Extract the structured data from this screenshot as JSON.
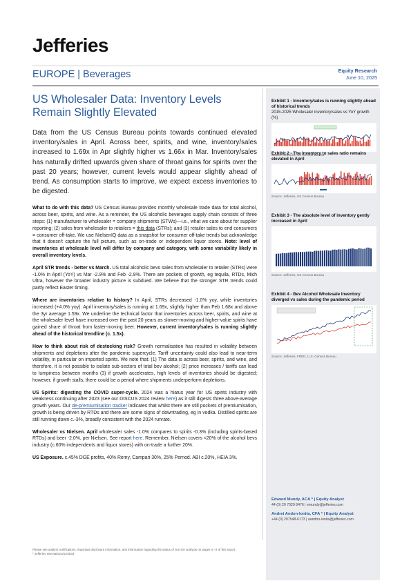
{
  "brand": {
    "logo": "Jefferies"
  },
  "header": {
    "sector": "EUROPE | Beverages",
    "report_type": "Equity Research",
    "date": "June 10, 2025"
  },
  "title": "US Wholesaler Data: Inventory Levels Remain Slightly Elevated",
  "lede": "Data from the US Census Bureau points towards continued elevated inventory/sales in April. Across beer, spirits, and wine, inventory/sales increased to 1.69x in Apr slightly higher vs 1.66x in Mar. Inventory/sales has naturally drifted upwards given share of throat gains for spirits over the past 20 years; however, current levels would appear slightly ahead of trend. As consumption starts to improve, we expect excess inventories to be digested.",
  "sections": [
    {
      "lead": "What to do with this data?",
      "text": "US Census Bureau provides monthly wholesale trade data for total alcohol, across beer, spirits, and wine. As a reminder, the US alcoholic beverages supply chain consists of three steps: (1) manufacturer to wholesaler = company shipments (STWs)—i.e., what we care about for supplier reporting; (2) sales from wholesaler to retailers = ",
      "link": "this data",
      "text2": " (STRs); and (3) retailer sales to end consumers = consumer off-take. We use NielsenIQ data as a snapshot for consumer off-take trends but acknowledge that it doesn't capture the full picture, such as on-trade or independent liquor stores. ",
      "bold_tail": "Note: level of inventories at wholesale level will differ by company and category, with some variability likely in overall inventory levels."
    },
    {
      "lead": "April STR trends - better vs March.",
      "text": "US total alcoholic bevs sales from wholesaler to retailer (STRs) were -1.0% in April (YoY) vs Mar -2.9% and Feb -2.9%. There are pockets of growth, eg tequila, RTDs, Mich Ultra, however the broader industry picture is subdued. We believe that the stronger STR trends could partly reflect Easter timing."
    },
    {
      "lead": "Where are inventories relative to history?",
      "text": "In April, STRs decreased -1.0% yoy, while inventories increased (+4.0% yoy). April inventory/sales is running at 1.69x, slightly higher than Feb 1.68x and above the 3yr average 1.59x. We underline the technical factor that inventories across beer, spirits, and wine at the wholesaler level have increased over the past 20 years as slower-moving and higher-value spirits have gained share of throat from faster-moving beer. ",
      "bold_tail": "However, current inventory/sales is running slightly ahead of the historical trendline (c. 1.5x)."
    },
    {
      "lead": "How to think about risk of destocking risk?",
      "text": "Growth normalisation has resulted in volatility between shipments and depletions after the pandemic supercycle. Tariff uncertainty could also lead to near-term volatility, in particular on imported spirits. We note that: (1) The data is across beer, spirits, and wine, and therefore, it is not possible to isolate sub-sectors of total bev alcohol; (2) price increases / tariffs can lead to lumpiness between months (3) if growth accelerates, high levels of inventories should be digested; however, if growth stalls, there could be a period where shipments underperform depletions."
    },
    {
      "lead": "US Spirits: digesting the COVID super-cycle.",
      "text": "2024 was a hiatus year for US spirits industry with weakness continuing after 2023 (see our DISCUS 2024 review ",
      "link": "here",
      "text2": ") as it still digests three above-average growth years. Our ",
      "link2": "de-premiumisation tracker",
      "text3": " indicates that whilst there are still pockets of premiumisation, growth is being driven by RTDs and there are some signs of downtrading, eg in vodka. Distilled spirits are still running down c.-3%, broadly consistent with the 2024 runrate."
    },
    {
      "lead": "Wholesaler vs Nielsen. April",
      "text": "wholesaler sales -1.0% compares to spirits -0.3% (including spirits-based RTDs) and beer -2.0%, per Nielsen. See report ",
      "link": "here",
      "text2": ". Remember, Nielsen covers <20% of the alcohol bevs industry (c.60% independents and liquor stores) with on-trade a further 20%."
    },
    {
      "lead": "US Exposure.",
      "text": "c.45% DGE profits, 40% Remy, Campari 30%, 25% Pernod. ABI c.20%, HEIA 3%."
    }
  ],
  "exhibits": [
    {
      "title": "Exhibit 1 - Inventory/sales is running slightly ahead of historical trends",
      "subtitle": "2015-2025 Wholesaler inventory/sales vs YoY growth (%)",
      "source": "Source: Jefferies, US Census Bureau"
    },
    {
      "title": "Exhibit 2 - The inventory to sales ratio remains elevated in April",
      "source": "Source: Jefferies, US Census Bureau"
    },
    {
      "title": "Exhibit 3 - The absolute level of inventory gently increased in April",
      "source": "Source: Jefferies, US Census Bureau"
    },
    {
      "title": "Exhibit 4 - Bev Alcohol Wholesale Inventory diverged vs sales during the pandemic period",
      "source": "Source: Jefferies, FRED, U.S. Census Bureau"
    }
  ],
  "analysts": [
    {
      "name": "Edward Mundy, ACA *",
      "role": " | Equity Analyst",
      "contact": "44 (0) 20 7029 8476 | emundy@jefferies.com"
    },
    {
      "name": "Andrei Andon-Ionita, CFA *",
      "role": " | Equity Analyst",
      "contact": "+44 (0) 207548-6173 | aandon-ionita@jefferies.com"
    }
  ],
  "footer": {
    "line1": "Please see analyst certifications, important disclosure information, and information regarding the status of non-US analysts on pages 4 - 8 of this report.",
    "line2": "* Jefferies International Limited"
  },
  "colors": {
    "accent": "#2a5b9c",
    "bar_red": "#d9473b",
    "bar_navy": "#1f3a78",
    "sidebar_bg": "#eaecef"
  }
}
